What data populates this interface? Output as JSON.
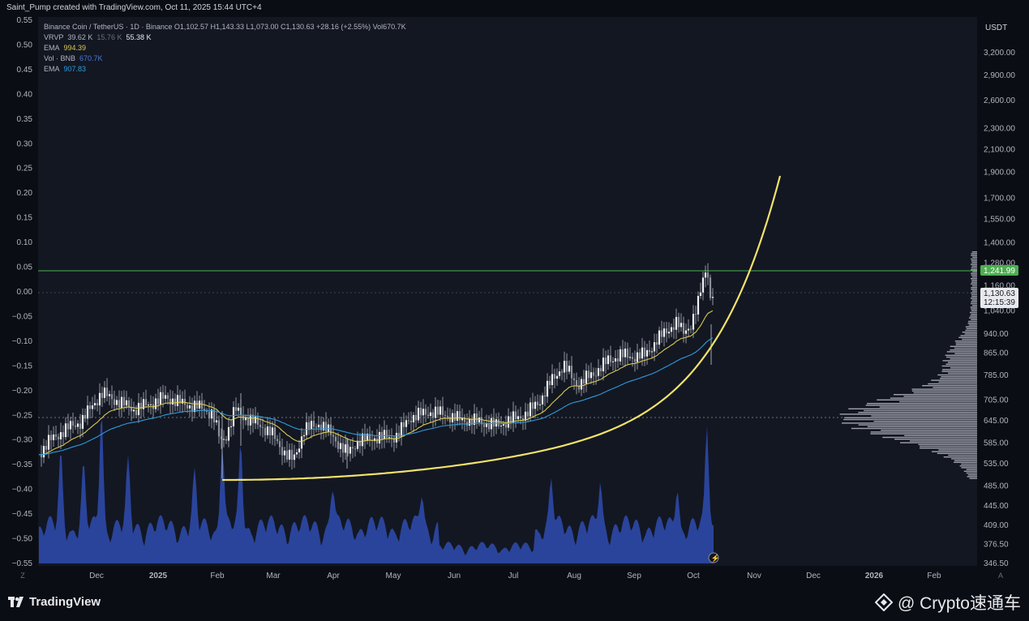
{
  "header": {
    "attribution": "Saint_Pump created with TradingView.com, Oct 11, 2025 15:44 UTC+4"
  },
  "legend": {
    "line1": "Binance Coin / TetherUS · 1D · Binance  O1,102.57  H1,143.33  L1,073.00  C1,130.63  +28.16 (+2.55%)  Vol670.7K",
    "vrvp_label": "VRVP",
    "vrvp_v1": "39.62 K",
    "vrvp_v2": "15.76 K",
    "vrvp_v3": "55.38 K",
    "ema1_label": "EMA",
    "ema1_value": "994.39",
    "vol_label": "Vol · BNB",
    "vol_value": "670.7K",
    "ema2_label": "EMA",
    "ema2_value": "907.83"
  },
  "right_axis": {
    "currency": "USDT",
    "labels": [
      "3,200.00",
      "2,900.00",
      "2,600.00",
      "2,300.00",
      "2,100.00",
      "1,900.00",
      "1,700.00",
      "1,550.00",
      "1,400.00",
      "1,280.00",
      "1,160.00",
      "1,040.00",
      "940.00",
      "865.00",
      "785.00",
      "705.00",
      "645.00",
      "585.00",
      "535.00",
      "485.00",
      "445.00",
      "409.00",
      "376.50",
      "346.50"
    ],
    "level_tag": "1,241.99",
    "price_tag": "1,130.63",
    "countdown_tag": "12:15:39"
  },
  "left_axis": {
    "labels": [
      "0.55",
      "0.50",
      "0.45",
      "0.40",
      "0.35",
      "0.30",
      "0.25",
      "0.20",
      "0.15",
      "0.10",
      "0.05",
      "0.00",
      "−0.05",
      "−0.10",
      "−0.15",
      "−0.20",
      "−0.25",
      "−0.30",
      "−0.35",
      "−0.40",
      "−0.45",
      "−0.50",
      "−0.55"
    ]
  },
  "time_axis": {
    "labels": [
      "Dec",
      "2025",
      "Feb",
      "Mar",
      "Apr",
      "May",
      "Jun",
      "Jul",
      "Aug",
      "Sep",
      "Oct",
      "Nov",
      "Dec",
      "2026",
      "Feb"
    ],
    "corner_left": "Z",
    "corner_right": "A"
  },
  "footer": {
    "logo_text": "TradingView",
    "brand_text": "@ Crypto速通车"
  },
  "colors": {
    "background": "#131722",
    "candle": "#e0e3eb",
    "ema_yellow": "#d9c84f",
    "ema_blue": "#2f9bd9",
    "curve": "#f2e26a",
    "level": "#4caf50",
    "volume": "#2e49a8"
  },
  "chart_data": {
    "type": "candlestick",
    "title": "Binance Coin / TetherUS · 1D · Binance",
    "x_range": [
      "2024-11-01",
      "2026-02-28"
    ],
    "y_scale": "log",
    "ylim": [
      346.5,
      3300
    ],
    "monthly_close": [
      {
        "month": "2024-11",
        "close": 640
      },
      {
        "month": "2024-12",
        "close": 705
      },
      {
        "month": "2025-01",
        "close": 680
      },
      {
        "month": "2025-02",
        "close": 590
      },
      {
        "month": "2025-03",
        "close": 600
      },
      {
        "month": "2025-04",
        "close": 600
      },
      {
        "month": "2025-05",
        "close": 650
      },
      {
        "month": "2025-06",
        "close": 645
      },
      {
        "month": "2025-07",
        "close": 800
      },
      {
        "month": "2025-08",
        "close": 860
      },
      {
        "month": "2025-09",
        "close": 1020
      },
      {
        "month": "2025-10",
        "close": 1130.63
      }
    ],
    "horizontal_level": 1241.99,
    "last_close": 1130.63,
    "dotted_level": 655,
    "ema_last": [
      994.39,
      907.83
    ],
    "volume_last": "670.7K"
  }
}
